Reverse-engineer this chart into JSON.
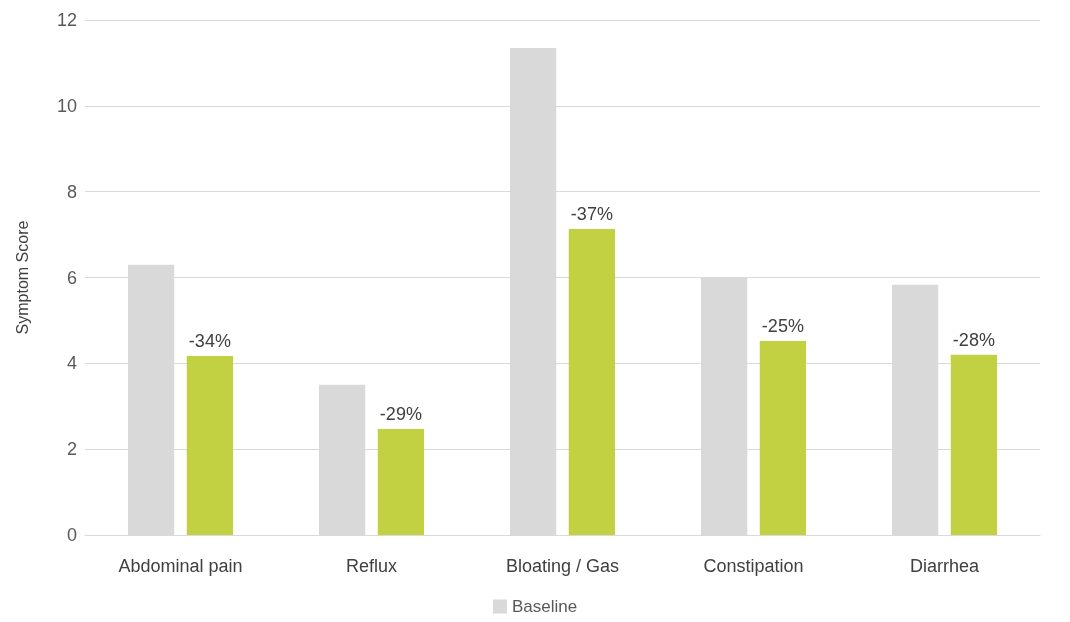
{
  "chart_data": {
    "type": "bar",
    "ylabel": "Symptom Score",
    "categories": [
      "Abdominal pain",
      "Reflux",
      "Bloating / Gas",
      "Constipation",
      "Diarrhea"
    ],
    "series": [
      {
        "name": "Baseline",
        "color": "#d9d9d9",
        "values": [
          6.3,
          3.5,
          11.35,
          6.0,
          5.83
        ]
      },
      {
        "color": "#c2d142",
        "values": [
          4.17,
          2.47,
          7.13,
          4.52,
          4.2
        ]
      }
    ],
    "annotations": [
      "-34%",
      "-29%",
      "-37%",
      "-25%",
      "-28%"
    ],
    "ylim": [
      0,
      12
    ],
    "yticks": [
      0,
      2,
      4,
      6,
      8,
      10,
      12
    ],
    "grid": "y",
    "legend": "bottom"
  }
}
